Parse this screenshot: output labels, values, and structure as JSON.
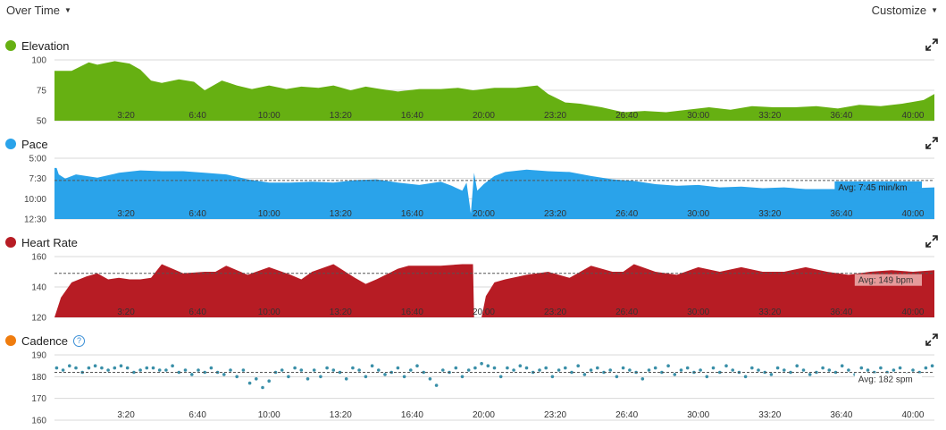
{
  "toolbar": {
    "view_label": "Over Time",
    "customize_label": "Customize"
  },
  "x_ticks": [
    "3:20",
    "6:40",
    "10:00",
    "13:20",
    "16:40",
    "20:00",
    "23:20",
    "26:40",
    "30:00",
    "33:20",
    "36:40",
    "40:00"
  ],
  "panels": {
    "elevation": {
      "title": "Elevation",
      "color": "#66b012",
      "icon": "expand-icon"
    },
    "pace": {
      "title": "Pace",
      "color": "#2aa3ea",
      "icon": "expand-icon",
      "avg_label": "Avg: 7:45 min/km"
    },
    "heart_rate": {
      "title": "Heart Rate",
      "color": "#b71c24",
      "icon": "expand-icon",
      "avg_label": "Avg: 149 bpm"
    },
    "cadence": {
      "title": "Cadence",
      "color": "#ef7c0e",
      "icon": "expand-icon",
      "help_icon": "help-icon",
      "help_glyph": "?",
      "avg_label": "Avg: 182 spm"
    }
  },
  "chart_data": [
    {
      "type": "area",
      "ylabel": "",
      "ylim": [
        50,
        100
      ],
      "yticks": [
        "100",
        "75",
        "50"
      ],
      "ytick_values": [
        100,
        75,
        50
      ],
      "x_unit": "minutes",
      "xlim": [
        0,
        41
      ],
      "series": [
        {
          "color": "#66b012",
          "x": [
            0,
            0.8,
            1.6,
            2,
            2.8,
            3.5,
            4,
            4.5,
            5,
            5.8,
            6.5,
            7,
            7.8,
            8.5,
            9.2,
            10,
            10.8,
            11.5,
            12.3,
            13,
            13.8,
            14.5,
            15.2,
            16,
            17,
            18,
            18.8,
            19.5,
            20.5,
            21.5,
            22.5,
            23,
            23.8,
            24.5,
            25.5,
            26.5,
            27.5,
            28.5,
            29.5,
            30.5,
            31.5,
            32.5,
            33.5,
            34.5,
            35.5,
            36.5,
            37.5,
            38.5,
            39.5,
            40.5,
            41
          ],
          "y": [
            91,
            91,
            98,
            96,
            99,
            97,
            92,
            83,
            81,
            84,
            82,
            75,
            83,
            79,
            76,
            79,
            76,
            78,
            77,
            79,
            75,
            78,
            76,
            74,
            76,
            76,
            77,
            75,
            77,
            77,
            79,
            72,
            65,
            64,
            61,
            57,
            58,
            57,
            59,
            61,
            59,
            62,
            61,
            61,
            62,
            60,
            63,
            62,
            64,
            67,
            72
          ]
        }
      ]
    },
    {
      "type": "area",
      "ylabel": "",
      "yticks": [
        "5:00",
        "7:30",
        "10:00",
        "12:30"
      ],
      "ytick_values": [
        5.0,
        7.5,
        10.0,
        12.5
      ],
      "ylim_inverted": [
        5.0,
        12.5
      ],
      "avg": 7.75,
      "x_unit": "minutes",
      "xlim": [
        0,
        41
      ],
      "series": [
        {
          "color": "#2aa3ea",
          "x": [
            0,
            0.1,
            0.2,
            0.5,
            1,
            2,
            3,
            4,
            5,
            6,
            7,
            8,
            8.5,
            9,
            10,
            11,
            12,
            13,
            14,
            15,
            15.5,
            16,
            17,
            18,
            18.5,
            19,
            19.2,
            19.4,
            19.55,
            19.7,
            20,
            20.5,
            21,
            22,
            23,
            24,
            25,
            26,
            27,
            28,
            29,
            30,
            31,
            32,
            33,
            34,
            35,
            36,
            37,
            38,
            39,
            40,
            41
          ],
          "y": [
            6.2,
            6.2,
            7.0,
            7.5,
            7.0,
            7.4,
            6.8,
            6.5,
            6.6,
            6.6,
            6.8,
            7.0,
            7.3,
            7.6,
            8.0,
            8.0,
            7.9,
            8.0,
            7.7,
            7.6,
            7.8,
            8.0,
            8.3,
            7.9,
            8.4,
            9.0,
            8.0,
            11.8,
            6.8,
            9.0,
            8.2,
            7.2,
            6.7,
            6.4,
            6.6,
            6.7,
            7.2,
            7.6,
            7.8,
            8.2,
            8.4,
            8.3,
            8.6,
            8.5,
            8.7,
            8.6,
            8.8,
            8.8,
            8.8,
            8.6,
            8.7,
            8.7,
            8.6
          ]
        }
      ]
    },
    {
      "type": "area",
      "ylabel": "",
      "ylim": [
        120,
        160
      ],
      "yticks": [
        "160",
        "140",
        "120"
      ],
      "ytick_values": [
        160,
        140,
        120
      ],
      "avg": 149,
      "x_unit": "minutes",
      "xlim": [
        0,
        41
      ],
      "series": [
        {
          "color": "#b71c24",
          "x": [
            0,
            0.3,
            0.8,
            1.5,
            2,
            2.5,
            3,
            3.5,
            4,
            4.5,
            5,
            6,
            7,
            7.5,
            8,
            9,
            10,
            11,
            11.5,
            12,
            13,
            14,
            14.5,
            15,
            16,
            16.5,
            17,
            18,
            19,
            19.5,
            19.55,
            19.9,
            20.1,
            20.5,
            21,
            22,
            23,
            24,
            25,
            26,
            26.5,
            27,
            28,
            29,
            30,
            31,
            32,
            33,
            34,
            35,
            36,
            37,
            38,
            39,
            40,
            41
          ],
          "y": [
            120,
            133,
            143,
            147,
            149,
            145,
            146,
            145,
            145,
            146,
            155,
            149,
            150,
            150,
            154,
            148,
            153,
            148,
            145,
            150,
            155,
            146,
            142,
            145,
            152,
            154,
            154,
            154,
            155,
            155,
            120,
            120,
            134,
            143,
            145,
            148,
            150,
            146,
            154,
            150,
            150,
            155,
            150,
            148,
            153,
            150,
            153,
            150,
            150,
            153,
            150,
            148,
            150,
            151,
            150,
            151
          ]
        }
      ]
    },
    {
      "type": "scatter",
      "ylabel": "",
      "ylim": [
        160,
        190
      ],
      "yticks": [
        "190",
        "180",
        "170",
        "160"
      ],
      "ytick_values": [
        190,
        180,
        170,
        160
      ],
      "avg": 182,
      "x_unit": "minutes",
      "xlim": [
        0,
        41
      ],
      "series": [
        {
          "color": "#3a8fa8",
          "x": [
            0.1,
            0.4,
            0.7,
            1.0,
            1.3,
            1.6,
            1.9,
            2.2,
            2.5,
            2.8,
            3.1,
            3.4,
            3.7,
            4.0,
            4.3,
            4.6,
            4.9,
            5.2,
            5.5,
            5.8,
            6.1,
            6.4,
            6.7,
            7.0,
            7.3,
            7.6,
            7.9,
            8.2,
            8.5,
            8.8,
            9.1,
            9.4,
            9.7,
            10.0,
            10.3,
            10.6,
            10.9,
            11.2,
            11.5,
            11.8,
            12.1,
            12.4,
            12.7,
            13.0,
            13.3,
            13.6,
            13.9,
            14.2,
            14.5,
            14.8,
            15.1,
            15.4,
            15.7,
            16.0,
            16.3,
            16.6,
            16.9,
            17.2,
            17.5,
            17.8,
            18.1,
            18.4,
            18.7,
            19.0,
            19.3,
            19.6,
            19.9,
            20.2,
            20.5,
            20.8,
            21.1,
            21.4,
            21.7,
            22.0,
            22.3,
            22.6,
            22.9,
            23.2,
            23.5,
            23.8,
            24.1,
            24.4,
            24.7,
            25.0,
            25.3,
            25.6,
            25.9,
            26.2,
            26.5,
            26.8,
            27.1,
            27.4,
            27.7,
            28.0,
            28.3,
            28.6,
            28.9,
            29.2,
            29.5,
            29.8,
            30.1,
            30.4,
            30.7,
            31.0,
            31.3,
            31.6,
            31.9,
            32.2,
            32.5,
            32.8,
            33.1,
            33.4,
            33.7,
            34.0,
            34.3,
            34.6,
            34.9,
            35.2,
            35.5,
            35.8,
            36.1,
            36.4,
            36.7,
            37.0,
            37.3,
            37.6,
            37.9,
            38.2,
            38.5,
            38.8,
            39.1,
            39.4,
            39.7,
            40.0,
            40.3,
            40.6,
            40.9
          ],
          "y": [
            184,
            183,
            185,
            184,
            182,
            184,
            185,
            184,
            183,
            184,
            185,
            184,
            182,
            183,
            184,
            184,
            183,
            183,
            185,
            182,
            183,
            181,
            183,
            182,
            184,
            182,
            181,
            183,
            180,
            183,
            177,
            179,
            175,
            178,
            182,
            183,
            180,
            184,
            183,
            179,
            183,
            180,
            184,
            183,
            182,
            179,
            184,
            183,
            180,
            185,
            183,
            181,
            182,
            184,
            180,
            183,
            185,
            182,
            179,
            176,
            183,
            182,
            184,
            180,
            183,
            184,
            186,
            185,
            184,
            180,
            184,
            183,
            185,
            184,
            182,
            183,
            184,
            180,
            183,
            184,
            182,
            185,
            181,
            183,
            184,
            182,
            183,
            180,
            184,
            183,
            182,
            179,
            183,
            184,
            182,
            185,
            181,
            183,
            184,
            182,
            183,
            180,
            184,
            182,
            185,
            183,
            182,
            180,
            184,
            183,
            182,
            181,
            184,
            183,
            182,
            185,
            183,
            181,
            182,
            184,
            183,
            182,
            185,
            183,
            181,
            184,
            183,
            182,
            184,
            182,
            183,
            184,
            181,
            183,
            182,
            184,
            185
          ]
        }
      ]
    }
  ]
}
